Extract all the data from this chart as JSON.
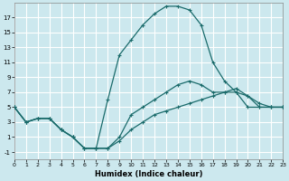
{
  "xlabel": "Humidex (Indice chaleur)",
  "bg_color": "#cce8ee",
  "grid_color": "#ffffff",
  "line_color": "#1a6b6b",
  "xlim": [
    0,
    23
  ],
  "ylim": [
    -2,
    19
  ],
  "xticks": [
    0,
    1,
    2,
    3,
    4,
    5,
    6,
    7,
    8,
    9,
    10,
    11,
    12,
    13,
    14,
    15,
    16,
    17,
    18,
    19,
    20,
    21,
    22,
    23
  ],
  "yticks": [
    -1,
    1,
    3,
    5,
    7,
    9,
    11,
    13,
    15,
    17
  ],
  "curve_main_x": [
    0,
    1,
    2,
    3,
    4,
    5,
    6,
    7,
    8,
    9,
    10,
    11,
    12,
    13,
    14,
    15,
    16,
    17,
    18,
    19,
    20,
    21,
    22,
    23
  ],
  "curve_main_y": [
    5,
    3,
    3.5,
    3.5,
    2,
    1,
    -0.5,
    -0.5,
    6,
    12,
    14,
    16,
    17.5,
    18.5,
    18.5,
    18,
    16,
    11,
    8.5,
    7,
    5,
    5,
    5,
    5
  ],
  "curve_dip_x": [
    0,
    1,
    2,
    3,
    4,
    5,
    6,
    7,
    8,
    9,
    10,
    11,
    12,
    13,
    14,
    15,
    16,
    17,
    18,
    19,
    20,
    21,
    22,
    23
  ],
  "curve_dip_y": [
    5,
    3,
    3.5,
    3.5,
    2,
    1,
    -0.5,
    -0.5,
    -0.5,
    1,
    4,
    5,
    6,
    7,
    8,
    8.5,
    8,
    7,
    7,
    7,
    6.5,
    5,
    5,
    5
  ],
  "curve_flat_x": [
    0,
    1,
    2,
    3,
    4,
    5,
    6,
    7,
    8,
    9,
    10,
    11,
    12,
    13,
    14,
    15,
    16,
    17,
    18,
    19,
    20,
    21,
    22,
    23
  ],
  "curve_flat_y": [
    5,
    3,
    3.5,
    3.5,
    2,
    1,
    -0.5,
    -0.5,
    -0.5,
    0.5,
    2,
    3,
    4,
    4.5,
    5,
    5.5,
    6,
    6.5,
    7,
    7.5,
    6.5,
    5.5,
    5,
    5
  ]
}
